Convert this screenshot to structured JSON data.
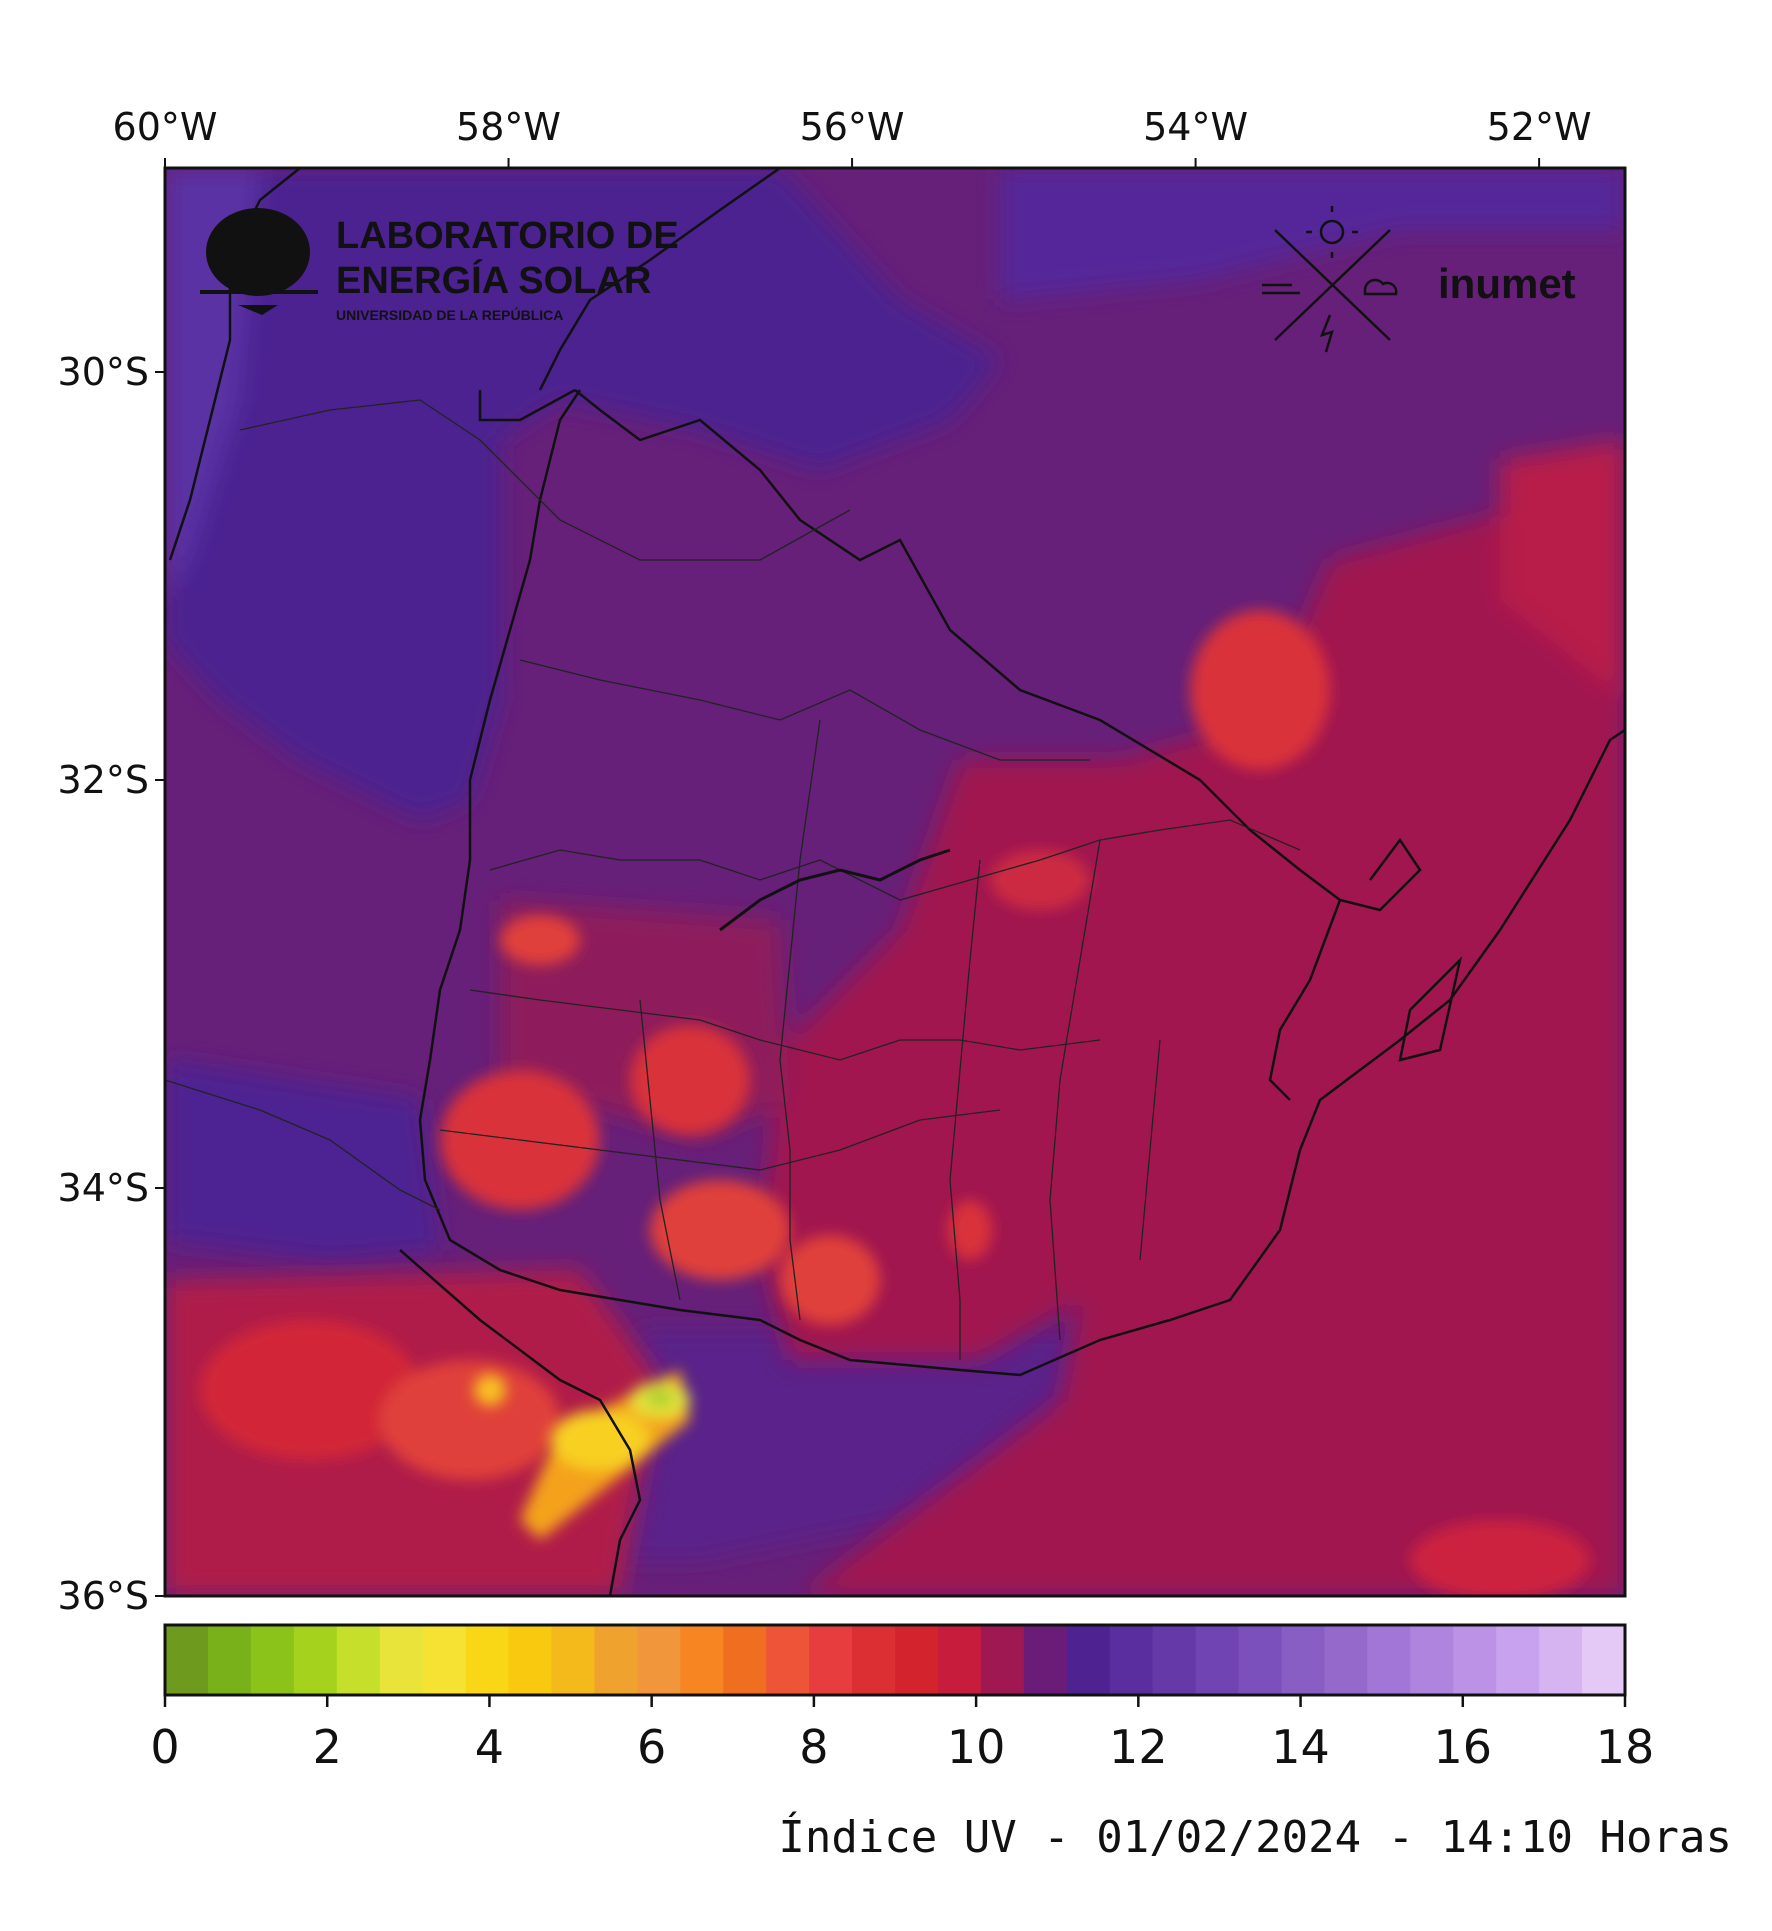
{
  "map": {
    "x_ticks": [
      "60°W",
      "58°W",
      "56°W",
      "54°W",
      "52°W"
    ],
    "y_ticks": [
      "30°S",
      "32°S",
      "34°S",
      "36°S"
    ],
    "lon_range": [
      -60,
      -51.5
    ],
    "lat_range": [
      -29,
      -36
    ]
  },
  "logos": {
    "les_line1": "LABORATORIO DE",
    "les_line2": "ENERGÍA SOLAR",
    "les_line3": "UNIVERSIDAD DE LA REPÚBLICA",
    "inumet": "inumet"
  },
  "colorbar": {
    "ticks": [
      "0",
      "2",
      "4",
      "6",
      "8",
      "10",
      "12",
      "14",
      "16",
      "18"
    ],
    "min": 0,
    "max": 18,
    "colors": [
      "#6e9a1e",
      "#78b11a",
      "#8cc31a",
      "#a5d21c",
      "#c6df2a",
      "#e8e43a",
      "#f6e233",
      "#f9d716",
      "#f8c90f",
      "#f4b91a",
      "#f0a22e",
      "#f2963c",
      "#f68522",
      "#f06e20",
      "#ee5538",
      "#e73d3e",
      "#dc2f34",
      "#d3242e",
      "#c81c3c",
      "#a01852",
      "#6a1c78",
      "#4e2291",
      "#5a2e9e",
      "#6539a8",
      "#7044b2",
      "#7c50bc",
      "#885dc4",
      "#9568cc",
      "#a276d6",
      "#ae84de",
      "#bb92e6",
      "#c8a2ee",
      "#d6b4f2",
      "#e4c8f6"
    ]
  },
  "caption": "Índice UV - 01/02/2024 - 14:10 Horas"
}
